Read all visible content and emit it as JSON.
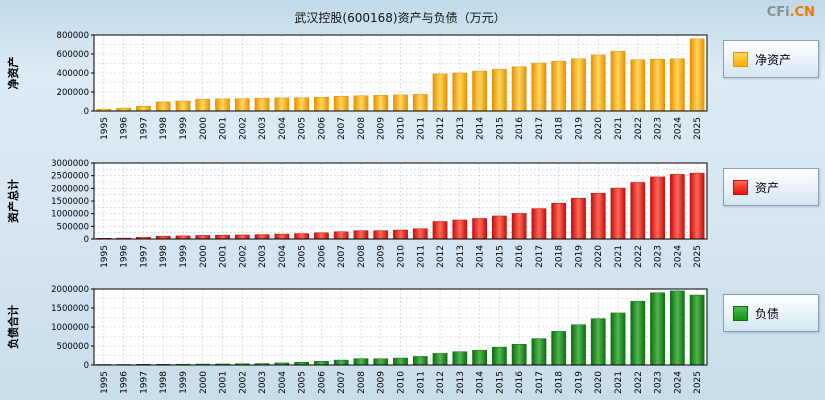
{
  "header": {
    "title": "武汉控股(600168)资产与负债（万元）",
    "logo_prefix": "CFi",
    "logo_suffix": ".CN"
  },
  "chart_data": [
    {
      "type": "bar",
      "ylabel": "净资产",
      "legend": "净资产",
      "legend_color": "#FFAA00",
      "color_light": "#FFD75E",
      "color_dark": "#E89000",
      "ylim": [
        0,
        800000
      ],
      "ytick_step": 200000,
      "categories": [
        "1995",
        "1996",
        "1997",
        "1998",
        "1999",
        "2000",
        "2001",
        "2002",
        "2003",
        "2004",
        "2005",
        "2006",
        "2007",
        "2008",
        "2009",
        "2010",
        "2011",
        "2012",
        "2013",
        "2014",
        "2015",
        "2016",
        "2017",
        "2018",
        "2019",
        "2020",
        "2021",
        "2022",
        "2023",
        "2024",
        "2025"
      ],
      "values": [
        20000,
        30000,
        50000,
        95000,
        105000,
        125000,
        128000,
        130000,
        135000,
        138000,
        140000,
        145000,
        155000,
        160000,
        165000,
        170000,
        175000,
        390000,
        400000,
        420000,
        440000,
        465000,
        505000,
        525000,
        550000,
        590000,
        630000,
        540000,
        545000,
        550000,
        760000
      ]
    },
    {
      "type": "bar",
      "ylabel": "资产总计",
      "legend": "资产",
      "legend_color": "#EE1111",
      "color_light": "#FF6A55",
      "color_dark": "#C40D0D",
      "ylim": [
        0,
        3000000
      ],
      "ytick_step": 500000,
      "categories": [
        "1995",
        "1996",
        "1997",
        "1998",
        "1999",
        "2000",
        "2001",
        "2002",
        "2003",
        "2004",
        "2005",
        "2006",
        "2007",
        "2008",
        "2009",
        "2010",
        "2011",
        "2012",
        "2013",
        "2014",
        "2015",
        "2016",
        "2017",
        "2018",
        "2019",
        "2020",
        "2021",
        "2022",
        "2023",
        "2024",
        "2025"
      ],
      "values": [
        30000,
        35000,
        65000,
        110000,
        125000,
        140000,
        150000,
        160000,
        175000,
        195000,
        215000,
        245000,
        285000,
        330000,
        330000,
        355000,
        405000,
        690000,
        750000,
        810000,
        910000,
        1010000,
        1200000,
        1410000,
        1610000,
        1810000,
        2010000,
        2230000,
        2450000,
        2550000,
        2600000
      ]
    },
    {
      "type": "bar",
      "ylabel": "负债合计",
      "legend": "负债",
      "legend_color": "#119911",
      "color_light": "#52B552",
      "color_dark": "#0A6E0A",
      "ylim": [
        0,
        2000000
      ],
      "ytick_step": 500000,
      "categories": [
        "1995",
        "1996",
        "1997",
        "1998",
        "1999",
        "2000",
        "2001",
        "2002",
        "2003",
        "2004",
        "2005",
        "2006",
        "2007",
        "2008",
        "2009",
        "2010",
        "2011",
        "2012",
        "2013",
        "2014",
        "2015",
        "2016",
        "2017",
        "2018",
        "2019",
        "2020",
        "2021",
        "2022",
        "2023",
        "2024",
        "2025"
      ],
      "values": [
        15000,
        15000,
        20000,
        20000,
        22000,
        25000,
        27000,
        32000,
        38000,
        55000,
        72000,
        97000,
        130000,
        168000,
        165000,
        183000,
        225000,
        305000,
        350000,
        390000,
        470000,
        545000,
        695000,
        885000,
        1060000,
        1220000,
        1370000,
        1680000,
        1900000,
        1950000,
        1840000
      ]
    }
  ]
}
